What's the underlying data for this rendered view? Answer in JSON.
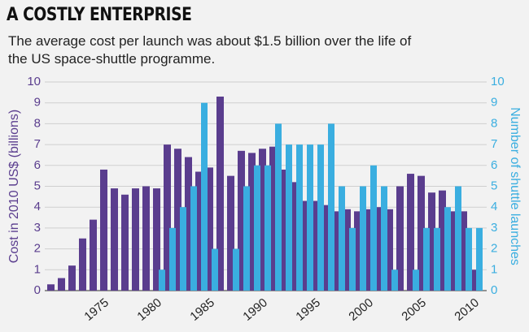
{
  "chart_data": {
    "type": "bar",
    "title": "A COSTLY ENTERPRISE",
    "subtitle": "The average cost per launch was about $1.5 billion over the life of the US space-shuttle programme.",
    "y_label": "Cost in 2010 US$ (billions)",
    "y2_label": "Number of shuttle launches",
    "categories": [
      null,
      null,
      null,
      null,
      "1975",
      null,
      null,
      null,
      null,
      "1980",
      null,
      null,
      null,
      null,
      "1985",
      null,
      null,
      null,
      null,
      "1990",
      null,
      null,
      null,
      null,
      "1995",
      null,
      null,
      null,
      null,
      "2000",
      null,
      null,
      null,
      null,
      "2005",
      null,
      null,
      null,
      null,
      "2010",
      null
    ],
    "series": [
      {
        "name": "Cost",
        "color": "#5a3d8e",
        "axis": "y",
        "values": [
          0.3,
          0.6,
          1.2,
          2.5,
          3.4,
          5.8,
          4.9,
          4.6,
          4.9,
          5.0,
          4.9,
          7.0,
          6.8,
          6.4,
          5.7,
          5.9,
          9.3,
          5.5,
          6.7,
          6.6,
          6.8,
          6.9,
          5.8,
          5.2,
          4.3,
          4.3,
          4.1,
          3.8,
          3.9,
          3.8,
          3.9,
          4.0,
          3.9,
          5.0,
          5.6,
          5.5,
          4.7,
          4.8,
          3.8,
          3.8,
          1.0
        ]
      },
      {
        "name": "Launches",
        "color": "#3aaee0",
        "axis": "y2",
        "values": [
          null,
          null,
          null,
          null,
          null,
          null,
          null,
          null,
          null,
          null,
          1,
          3,
          4,
          5,
          9,
          2,
          0,
          2,
          5,
          6,
          6,
          8,
          7,
          7,
          7,
          7,
          8,
          5,
          3,
          5,
          6,
          5,
          1,
          0,
          1,
          3,
          3,
          4,
          5,
          3,
          3
        ]
      }
    ],
    "ylim": [
      0,
      10
    ],
    "yticks": [
      0,
      1,
      2,
      3,
      4,
      5,
      6,
      7,
      8,
      9,
      10
    ],
    "y2lim": [
      0,
      10
    ],
    "y2ticks": [
      0,
      1,
      2,
      3,
      4,
      5,
      6,
      7,
      8,
      9,
      10
    ],
    "grid": true
  }
}
